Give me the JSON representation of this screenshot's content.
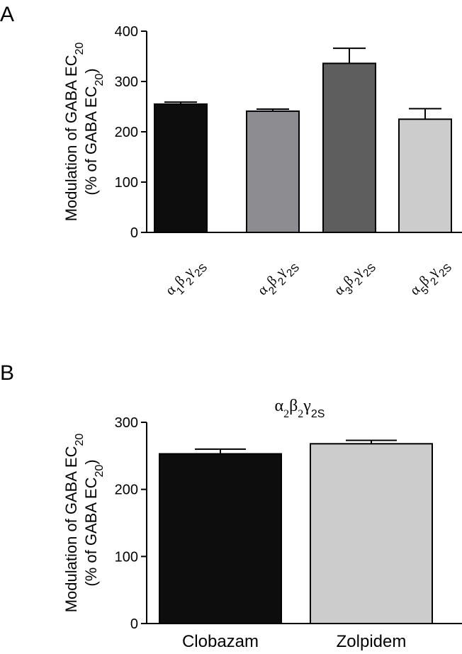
{
  "panels": {
    "a": {
      "letter": "A"
    },
    "b": {
      "letter": "B"
    }
  },
  "chart_data": [
    {
      "type": "bar",
      "title": "",
      "ylabel_line1": "Modulation of GABA EC",
      "ylabel_line1_sub": "20",
      "ylabel_line2": "(% of GABA EC",
      "ylabel_line2_sub": "20",
      "ylabel_line2_end": ")",
      "ylim": [
        0,
        400
      ],
      "yticks": [
        0,
        100,
        200,
        300,
        400
      ],
      "categories": [
        {
          "greek1": "α",
          "sub1": "1",
          "greek2": "β",
          "sub2": "2",
          "greek3": "γ",
          "sub3": "2S"
        },
        {
          "greek1": "α",
          "sub1": "2",
          "greek2": "β",
          "sub2": "2",
          "greek3": "γ",
          "sub3": "2S"
        },
        {
          "greek1": "α",
          "sub1": "3",
          "greek2": "β",
          "sub2": "2",
          "greek3": "γ",
          "sub3": "2S"
        },
        {
          "greek1": "α",
          "sub1": "5",
          "greek2": "β",
          "sub2": "2",
          "greek3": "γ",
          "sub3": "2S"
        }
      ],
      "values": [
        255,
        241,
        336,
        225
      ],
      "errors": [
        4,
        4,
        30,
        21
      ],
      "colors": [
        "#0d0d0d",
        "#8c8c91",
        "#5e5e5e",
        "#cccccc"
      ]
    },
    {
      "type": "bar",
      "title_parts": {
        "greek1": "α",
        "sub1": "2",
        "greek2": "β",
        "sub2": "2",
        "greek3": "γ",
        "sub3": "2S"
      },
      "ylabel_line1": "Modulation of GABA EC",
      "ylabel_line1_sub": "20",
      "ylabel_line2": "(% of GABA EC",
      "ylabel_line2_sub": "20",
      "ylabel_line2_end": ")",
      "ylim": [
        0,
        300
      ],
      "yticks": [
        0,
        100,
        200,
        300
      ],
      "categories": [
        "Clobazam",
        "Zolpidem"
      ],
      "values": [
        253,
        268
      ],
      "errors": [
        7,
        5
      ],
      "colors": [
        "#0d0d0d",
        "#cccccc"
      ]
    }
  ]
}
